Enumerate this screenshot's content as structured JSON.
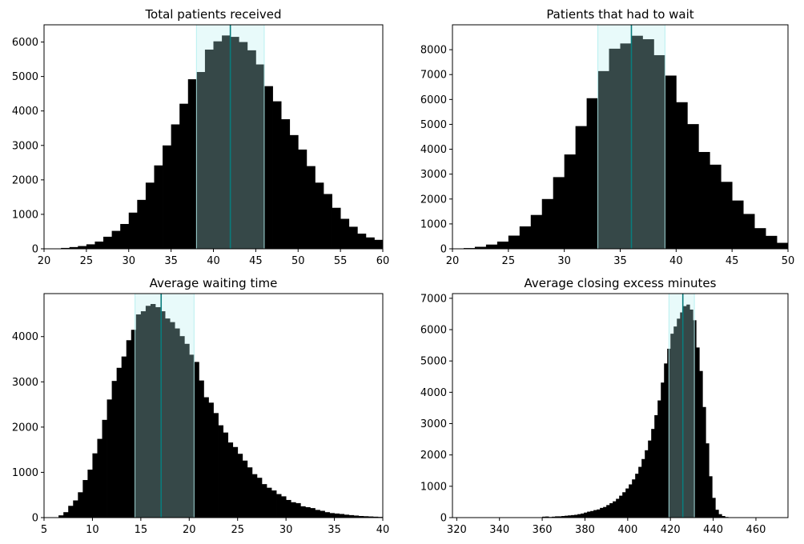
{
  "chart_data": [
    {
      "type": "bar",
      "title": "Total patients received",
      "xlabel": "",
      "ylabel": "",
      "xlim": [
        20,
        60
      ],
      "ylim": [
        0,
        6500
      ],
      "xticks": [
        "20",
        "25",
        "30",
        "35",
        "40",
        "45",
        "50",
        "55",
        "60"
      ],
      "yticks": [
        "0",
        "1000",
        "2000",
        "3000",
        "4000",
        "5000",
        "6000"
      ],
      "bin_width": 1,
      "bins_start": [
        21,
        22,
        23,
        24,
        25,
        26,
        27,
        28,
        29,
        30,
        31,
        32,
        33,
        34,
        35,
        36,
        37,
        38,
        39,
        40,
        41,
        42,
        43,
        44,
        45,
        46,
        47,
        48,
        49,
        50,
        51,
        52,
        53,
        54,
        55,
        56,
        57,
        58,
        59
      ],
      "values": [
        10,
        25,
        50,
        80,
        130,
        210,
        350,
        520,
        720,
        1050,
        1420,
        1920,
        2420,
        3000,
        3610,
        4210,
        4920,
        5130,
        5780,
        6020,
        6190,
        6150,
        6000,
        5760,
        5350,
        4720,
        4280,
        3760,
        3300,
        2880,
        2400,
        1920,
        1590,
        1190,
        870,
        640,
        440,
        330,
        260
      ],
      "highlight": {
        "range": [
          38,
          46
        ],
        "marker": 42,
        "color": "#b2eeee",
        "line_color": "#0a7c7c"
      },
      "bar_color": "#000000"
    },
    {
      "type": "bar",
      "title": "Patients that had to wait",
      "xlabel": "",
      "ylabel": "",
      "xlim": [
        20,
        50
      ],
      "ylim": [
        0,
        9000
      ],
      "xticks": [
        "20",
        "25",
        "30",
        "35",
        "40",
        "45",
        "50"
      ],
      "yticks": [
        "0",
        "1000",
        "2000",
        "3000",
        "4000",
        "5000",
        "6000",
        "7000",
        "8000"
      ],
      "bin_width": 1,
      "bins_start": [
        21,
        22,
        23,
        24,
        25,
        26,
        27,
        28,
        29,
        30,
        31,
        32,
        33,
        34,
        35,
        36,
        37,
        38,
        39,
        40,
        41,
        42,
        43,
        44,
        45,
        46,
        47,
        48,
        49
      ],
      "values": [
        30,
        80,
        170,
        290,
        530,
        900,
        1360,
        2000,
        2880,
        3790,
        4930,
        6050,
        7140,
        8040,
        8250,
        8560,
        8420,
        7780,
        6960,
        5890,
        5010,
        3890,
        3380,
        2690,
        1940,
        1400,
        830,
        520,
        240
      ],
      "highlight": {
        "range": [
          33,
          39
        ],
        "marker": 36,
        "color": "#b2eeee",
        "line_color": "#0a7c7c"
      },
      "bar_color": "#000000"
    },
    {
      "type": "bar",
      "title": "Average waiting time",
      "xlabel": "",
      "ylabel": "",
      "xlim": [
        5,
        40
      ],
      "ylim": [
        0,
        4950
      ],
      "xticks": [
        "5",
        "10",
        "15",
        "20",
        "25",
        "30",
        "35",
        "40"
      ],
      "yticks": [
        "0",
        "1000",
        "2000",
        "3000",
        "4000"
      ],
      "bin_width": 0.5,
      "bins_start": [
        6.5,
        7.0,
        7.5,
        8.0,
        8.5,
        9.0,
        9.5,
        10.0,
        10.5,
        11.0,
        11.5,
        12.0,
        12.5,
        13.0,
        13.5,
        14.0,
        14.5,
        15.0,
        15.5,
        16.0,
        16.5,
        17.0,
        17.5,
        18.0,
        18.5,
        19.0,
        19.5,
        20.0,
        20.5,
        21.0,
        21.5,
        22.0,
        22.5,
        23.0,
        23.5,
        24.0,
        24.5,
        25.0,
        25.5,
        26.0,
        26.5,
        27.0,
        27.5,
        28.0,
        28.5,
        29.0,
        29.5,
        30.0,
        30.5,
        31.0,
        31.5,
        32.0,
        32.5,
        33.0,
        33.5,
        34.0,
        34.5,
        35.0,
        35.5,
        36.0,
        36.5,
        37.0,
        37.5,
        38.0,
        38.5,
        39.0,
        39.5
      ],
      "values": [
        50,
        120,
        260,
        380,
        560,
        830,
        1060,
        1420,
        1740,
        2160,
        2610,
        3020,
        3310,
        3560,
        3920,
        4150,
        4490,
        4560,
        4680,
        4720,
        4650,
        4560,
        4400,
        4320,
        4180,
        4010,
        3840,
        3600,
        3440,
        3030,
        2660,
        2540,
        2310,
        2040,
        1880,
        1660,
        1560,
        1410,
        1260,
        1110,
        960,
        880,
        740,
        660,
        600,
        520,
        470,
        390,
        340,
        320,
        250,
        230,
        210,
        170,
        150,
        120,
        100,
        90,
        80,
        65,
        55,
        45,
        35,
        30,
        25,
        20,
        15
      ],
      "highlight": {
        "range": [
          14.4,
          20.5
        ],
        "marker": 17.1,
        "color": "#b2eeee",
        "line_color": "#0a7c7c"
      },
      "bar_color": "#000000"
    },
    {
      "type": "bar",
      "title": "Average closing excess minutes",
      "xlabel": "",
      "ylabel": "",
      "xlim": [
        318,
        475
      ],
      "ylim": [
        0,
        7150
      ],
      "xticks": [
        "320",
        "340",
        "360",
        "380",
        "400",
        "420",
        "440",
        "460"
      ],
      "yticks": [
        "0",
        "1000",
        "2000",
        "3000",
        "4000",
        "5000",
        "6000",
        "7000"
      ],
      "bin_width": 1.5,
      "bins_start": [
        360.0,
        361.5,
        363.0,
        364.5,
        366.0,
        367.5,
        369.0,
        370.5,
        372.0,
        373.5,
        375.0,
        376.5,
        378.0,
        379.5,
        381.0,
        382.5,
        384.0,
        385.5,
        387.0,
        388.5,
        390.0,
        391.5,
        393.0,
        394.5,
        396.0,
        397.5,
        399.0,
        400.5,
        402.0,
        403.5,
        405.0,
        406.5,
        408.0,
        409.5,
        411.0,
        412.5,
        414.0,
        415.5,
        417.0,
        418.5,
        420.0,
        421.5,
        423.0,
        424.5,
        426.0,
        427.5,
        429.0,
        430.5,
        432.0,
        433.5,
        435.0,
        436.5,
        438.0,
        439.5,
        441.0,
        442.5,
        444.0,
        445.5,
        447.0
      ],
      "values": [
        30,
        35,
        20,
        30,
        40,
        40,
        50,
        60,
        70,
        80,
        90,
        110,
        130,
        160,
        190,
        210,
        240,
        260,
        310,
        340,
        400,
        460,
        520,
        600,
        700,
        810,
        930,
        1060,
        1220,
        1400,
        1620,
        1870,
        2150,
        2460,
        2830,
        3270,
        3740,
        4310,
        4920,
        5390,
        5870,
        6100,
        6350,
        6550,
        6750,
        6800,
        6640,
        6300,
        5430,
        4680,
        3530,
        2370,
        1320,
        630,
        250,
        110,
        50,
        20,
        10
      ],
      "highlight": {
        "range": [
          419.3,
          431.2
        ],
        "marker": 425.8,
        "color": "#b2eeee",
        "line_color": "#0a7c7c"
      },
      "bar_color": "#000000"
    }
  ]
}
